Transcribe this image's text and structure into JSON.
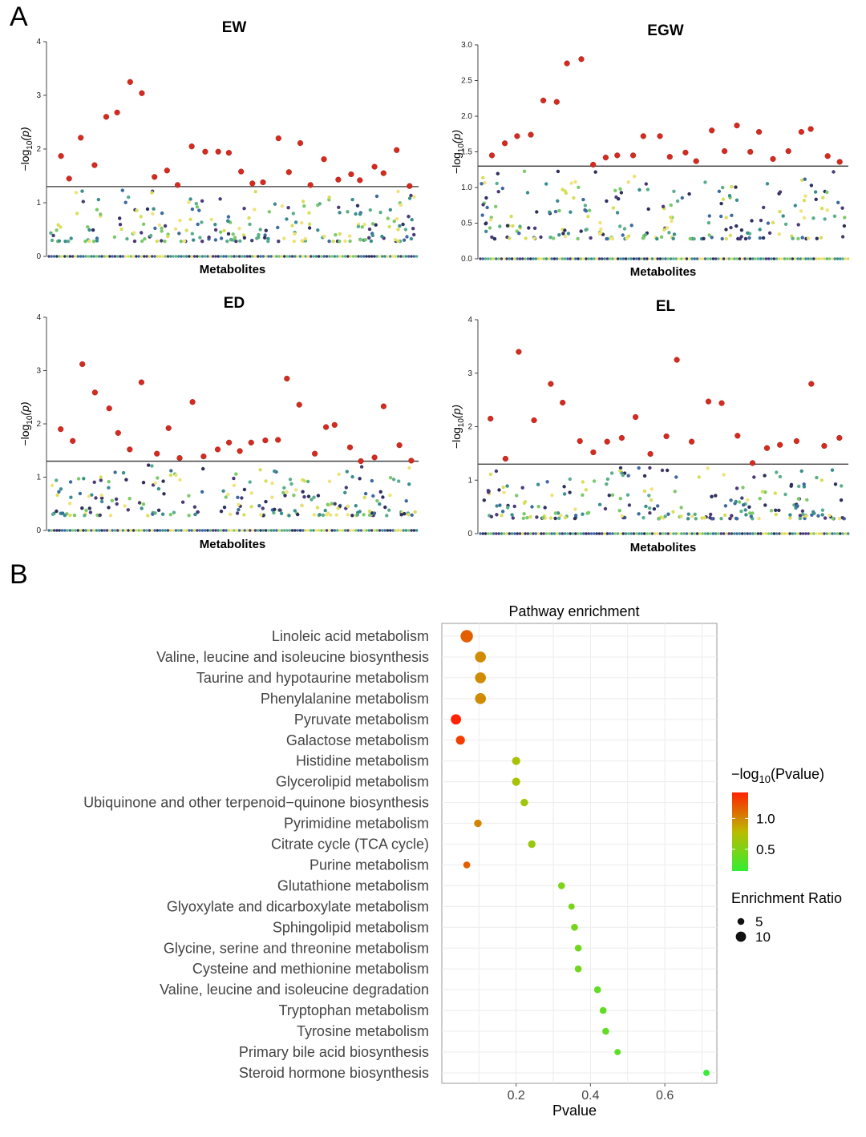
{
  "panels": {
    "a": "A",
    "b": "B"
  },
  "chart_data": [
    {
      "type": "scatter",
      "title": "EW",
      "xlabel": "Metabolites",
      "ylabel_main": "−log",
      "ylabel_sub": "10",
      "ylabel_var": "(p)",
      "ylim": [
        0,
        4
      ],
      "yticks": [
        "0",
        "1",
        "2",
        "3",
        "4"
      ],
      "threshold": 1.3,
      "significant": [
        1.87,
        1.45,
        2.21,
        1.7,
        2.6,
        2.68,
        3.25,
        3.04,
        1.48,
        1.6,
        1.33,
        2.05,
        1.95,
        1.95,
        1.93,
        1.58,
        1.36,
        1.38,
        2.2,
        1.57,
        2.11,
        1.33,
        1.81,
        1.43,
        1.53,
        1.42,
        1.67,
        1.55,
        1.98,
        1.31
      ],
      "seed": 11,
      "n_background": 220
    },
    {
      "type": "scatter",
      "title": "EGW",
      "xlabel": "Metabolites",
      "ylabel_main": "−log",
      "ylabel_sub": "10",
      "ylabel_var": "(p)",
      "ylim": [
        0,
        3
      ],
      "yticks": [
        "0.0",
        "0.5",
        "1.0",
        "1.5",
        "2.0",
        "2.5",
        "3.0"
      ],
      "threshold": 1.3,
      "significant": [
        1.45,
        1.62,
        1.72,
        1.74,
        2.22,
        2.2,
        2.74,
        2.8,
        1.32,
        1.42,
        1.45,
        1.45,
        1.72,
        1.72,
        1.43,
        1.49,
        1.37,
        1.8,
        1.51,
        1.87,
        1.5,
        1.78,
        1.4,
        1.51,
        1.78,
        1.82,
        1.44,
        1.36
      ],
      "seed": 23,
      "n_background": 220
    },
    {
      "type": "scatter",
      "title": "ED",
      "xlabel": "Metabolites",
      "ylabel_main": "−log",
      "ylabel_sub": "10",
      "ylabel_var": "(p)",
      "ylim": [
        0,
        4
      ],
      "yticks": [
        "0",
        "1",
        "2",
        "3",
        "4"
      ],
      "threshold": 1.3,
      "significant": [
        1.9,
        1.68,
        3.12,
        2.59,
        2.29,
        1.83,
        1.52,
        2.78,
        1.44,
        1.92,
        1.36,
        2.41,
        1.39,
        1.52,
        1.65,
        1.49,
        1.65,
        1.69,
        1.7,
        2.85,
        2.36,
        1.44,
        1.94,
        1.98,
        1.56,
        1.3,
        1.37,
        2.33,
        1.6,
        1.31
      ],
      "seed": 37,
      "n_background": 220
    },
    {
      "type": "scatter",
      "title": "EL",
      "xlabel": "Metabolites",
      "ylabel_main": "−log",
      "ylabel_sub": "10",
      "ylabel_var": "(p)",
      "ylim": [
        0,
        4
      ],
      "yticks": [
        "0",
        "1",
        "2",
        "3",
        "4"
      ],
      "threshold": 1.3,
      "significant": [
        2.15,
        1.4,
        3.4,
        2.12,
        2.8,
        2.45,
        1.73,
        1.52,
        1.72,
        1.79,
        2.18,
        1.49,
        1.82,
        3.25,
        1.72,
        2.47,
        2.44,
        1.83,
        1.32,
        1.6,
        1.66,
        1.73,
        2.8,
        1.64,
        1.79
      ],
      "seed": 53,
      "n_background": 220
    },
    {
      "type": "scatter",
      "title": "Pathway enrichment",
      "xlabel": "Pvalue",
      "xlim": [
        0,
        0.74
      ],
      "xticks": [
        "0.2",
        "0.4",
        "0.6"
      ],
      "categories": [
        "Linoleic acid metabolism",
        "Valine, leucine and isoleucine biosynthesis",
        "Taurine and hypotaurine metabolism",
        "Phenylalanine metabolism",
        "Pyruvate metabolism",
        "Galactose metabolism",
        "Histidine metabolism",
        "Glycerolipid metabolism",
        "Ubiquinone and other terpenoid−quinone biosynthesis",
        "Pyrimidine metabolism",
        "Citrate cycle (TCA cycle)",
        "Purine metabolism",
        "Glutathione metabolism",
        "Glyoxylate and dicarboxylate metabolism",
        "Sphingolipid metabolism",
        "Glycine, serine and threonine metabolism",
        "Cysteine and methionine metabolism",
        "Valine, leucine and isoleucine degradation",
        "Tryptophan metabolism",
        "Tyrosine metabolism",
        "Primary bile acid biosynthesis",
        "Steroid hormone biosynthesis"
      ],
      "pvalue": [
        0.067,
        0.104,
        0.104,
        0.104,
        0.038,
        0.05,
        0.2,
        0.2,
        0.222,
        0.097,
        0.242,
        0.067,
        0.322,
        0.349,
        0.357,
        0.367,
        0.367,
        0.419,
        0.434,
        0.441,
        0.473,
        0.712
      ],
      "enrichment_ratio": [
        13,
        11,
        11,
        11,
        10,
        8,
        7,
        7,
        6,
        6,
        6,
        5,
        5,
        4,
        5,
        5,
        5,
        5,
        5,
        5,
        4,
        4
      ],
      "neg_log10_pvalue": [
        1.17,
        0.98,
        0.98,
        0.98,
        1.42,
        1.3,
        0.7,
        0.7,
        0.65,
        1.01,
        0.62,
        1.17,
        0.49,
        0.46,
        0.45,
        0.44,
        0.44,
        0.38,
        0.36,
        0.36,
        0.33,
        0.15
      ],
      "color_legend": {
        "title_main": "−log",
        "title_sub": "10",
        "title_var": "(Pvalue)",
        "ticks": [
          "1.0",
          "0.5"
        ],
        "low": "#33ee33",
        "mid": "#bbbb00",
        "high": "#ff2200"
      },
      "size_legend": {
        "title": "Enrichment Ratio",
        "labels": [
          "5",
          "10"
        ]
      }
    }
  ]
}
